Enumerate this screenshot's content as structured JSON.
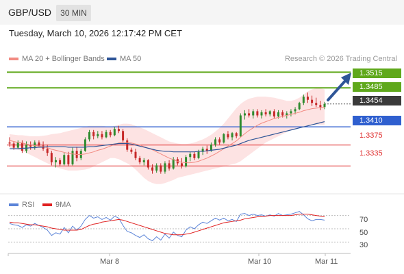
{
  "header": {
    "symbol": "GBP/USD",
    "timeframe": "30 MIN"
  },
  "datetime": "Tuesday, March 10, 2026 12:17:42 PM CET",
  "legend": {
    "ma20": {
      "label": "MA 20 + Bollinger Bands",
      "color": "#f28b82"
    },
    "ma50": {
      "label": "MA 50",
      "color": "#2e5597"
    }
  },
  "copyright": "Research © 2026 Trading Central",
  "levels": {
    "r2": "1.3515",
    "r1": "1.3485",
    "last": "1.3454",
    "s_pivot": "1.3410",
    "s1": "1.3375",
    "s2": "1.3335"
  },
  "colors": {
    "resistance": "#5fa81b",
    "pivot": "#2f5fcf",
    "support": "#e03030",
    "last": "#3a3a3a",
    "up_candle": "#2e8b2e",
    "down_candle": "#c62828",
    "band": "#fde3e3",
    "rsi": "#5b84d8",
    "rsi_ma": "#e02020"
  },
  "rsi_legend": {
    "rsi": "RSI",
    "ma": "9MA"
  },
  "rsi_axis": [
    "70",
    "50",
    "30"
  ],
  "dates": [
    "Mar 8",
    "Mar 10",
    "Mar 11"
  ],
  "chart_data": {
    "type": "candlestick",
    "candles": [
      [
        1.338,
        1.339,
        1.3372,
        1.3378
      ],
      [
        1.3378,
        1.3382,
        1.3366,
        1.337
      ],
      [
        1.337,
        1.3384,
        1.3368,
        1.338
      ],
      [
        1.338,
        1.3384,
        1.336,
        1.3364
      ],
      [
        1.3364,
        1.3382,
        1.336,
        1.3376
      ],
      [
        1.3376,
        1.3382,
        1.3366,
        1.3372
      ],
      [
        1.3372,
        1.3384,
        1.3366,
        1.338
      ],
      [
        1.338,
        1.3384,
        1.337,
        1.3374
      ],
      [
        1.3374,
        1.3382,
        1.3364,
        1.3368
      ],
      [
        1.3368,
        1.3376,
        1.3354,
        1.336
      ],
      [
        1.336,
        1.3364,
        1.3336,
        1.3342
      ],
      [
        1.3342,
        1.3352,
        1.3332,
        1.3346
      ],
      [
        1.3346,
        1.335,
        1.3334,
        1.3338
      ],
      [
        1.3338,
        1.336,
        1.3336,
        1.3356
      ],
      [
        1.3356,
        1.3362,
        1.3334,
        1.3338
      ],
      [
        1.3338,
        1.337,
        1.3336,
        1.3364
      ],
      [
        1.3364,
        1.3372,
        1.3344,
        1.335
      ],
      [
        1.335,
        1.3368,
        1.3346,
        1.3364
      ],
      [
        1.3364,
        1.339,
        1.3362,
        1.3386
      ],
      [
        1.3386,
        1.3404,
        1.3382,
        1.34
      ],
      [
        1.34,
        1.3404,
        1.3386,
        1.3392
      ],
      [
        1.3392,
        1.3402,
        1.3388,
        1.3396
      ],
      [
        1.3396,
        1.3402,
        1.3386,
        1.339
      ],
      [
        1.339,
        1.3404,
        1.3388,
        1.34
      ],
      [
        1.34,
        1.3404,
        1.339,
        1.3394
      ],
      [
        1.3394,
        1.341,
        1.3392,
        1.3406
      ],
      [
        1.3406,
        1.3412,
        1.3398,
        1.3402
      ],
      [
        1.3402,
        1.3406,
        1.338,
        1.3384
      ],
      [
        1.3384,
        1.3388,
        1.3362,
        1.3366
      ],
      [
        1.3366,
        1.337,
        1.3358,
        1.3362
      ],
      [
        1.3362,
        1.3368,
        1.3346,
        1.335
      ],
      [
        1.335,
        1.3354,
        1.3338,
        1.3342
      ],
      [
        1.3342,
        1.335,
        1.3336,
        1.3346
      ],
      [
        1.3346,
        1.3348,
        1.3328,
        1.3332
      ],
      [
        1.3332,
        1.3338,
        1.332,
        1.3326
      ],
      [
        1.3326,
        1.334,
        1.3322,
        1.3336
      ],
      [
        1.3336,
        1.334,
        1.332,
        1.3324
      ],
      [
        1.3324,
        1.3344,
        1.332,
        1.334
      ],
      [
        1.334,
        1.3346,
        1.3326,
        1.333
      ],
      [
        1.333,
        1.3352,
        1.3328,
        1.3348
      ],
      [
        1.3348,
        1.3352,
        1.3336,
        1.334
      ],
      [
        1.334,
        1.335,
        1.333,
        1.3334
      ],
      [
        1.3334,
        1.3356,
        1.3332,
        1.3352
      ],
      [
        1.3352,
        1.3362,
        1.3344,
        1.3358
      ],
      [
        1.3358,
        1.3362,
        1.3346,
        1.335
      ],
      [
        1.335,
        1.3366,
        1.3348,
        1.3362
      ],
      [
        1.3362,
        1.3372,
        1.3356,
        1.3368
      ],
      [
        1.3368,
        1.3374,
        1.3358,
        1.3364
      ],
      [
        1.3364,
        1.338,
        1.3362,
        1.3376
      ],
      [
        1.3376,
        1.339,
        1.3372,
        1.3386
      ],
      [
        1.3386,
        1.339,
        1.3376,
        1.338
      ],
      [
        1.338,
        1.3398,
        1.3378,
        1.3396
      ],
      [
        1.3396,
        1.3402,
        1.3386,
        1.339
      ],
      [
        1.339,
        1.34,
        1.3384,
        1.3398
      ],
      [
        1.3398,
        1.34,
        1.3388,
        1.3392
      ],
      [
        1.3392,
        1.3436,
        1.339,
        1.3432
      ],
      [
        1.3432,
        1.3442,
        1.3424,
        1.3436
      ],
      [
        1.3436,
        1.3444,
        1.3428,
        1.3432
      ],
      [
        1.3432,
        1.3444,
        1.3426,
        1.344
      ],
      [
        1.344,
        1.3444,
        1.3428,
        1.3432
      ],
      [
        1.3432,
        1.3442,
        1.3426,
        1.3438
      ],
      [
        1.3438,
        1.3444,
        1.343,
        1.3434
      ],
      [
        1.3434,
        1.3442,
        1.343,
        1.344
      ],
      [
        1.344,
        1.3444,
        1.3426,
        1.343
      ],
      [
        1.343,
        1.3442,
        1.3426,
        1.3438
      ],
      [
        1.3438,
        1.3442,
        1.3428,
        1.3432
      ],
      [
        1.3432,
        1.344,
        1.3426,
        1.3436
      ],
      [
        1.3436,
        1.3444,
        1.343,
        1.344
      ],
      [
        1.344,
        1.3448,
        1.3434,
        1.3444
      ],
      [
        1.3444,
        1.3458,
        1.3442,
        1.3456
      ],
      [
        1.3456,
        1.3472,
        1.3452,
        1.3468
      ],
      [
        1.3468,
        1.3476,
        1.3456,
        1.3462
      ],
      [
        1.3462,
        1.347,
        1.345,
        1.3456
      ],
      [
        1.3456,
        1.3466,
        1.3448,
        1.3452
      ],
      [
        1.3452,
        1.346,
        1.3442,
        1.3448
      ],
      [
        1.3448,
        1.3458,
        1.3444,
        1.3454
      ]
    ],
    "ma20": [
      1.3384,
      1.3382,
      1.338,
      1.3379,
      1.3377,
      1.3375,
      1.3374,
      1.3373,
      1.3372,
      1.337,
      1.3367,
      1.3365,
      1.3363,
      1.3361,
      1.3359,
      1.3358,
      1.3357,
      1.3357,
      1.3358,
      1.336,
      1.3362,
      1.3365,
      1.3367,
      1.337,
      1.3373,
      1.3376,
      1.3379,
      1.338,
      1.338,
      1.3379,
      1.3377,
      1.3375,
      1.3372,
      1.3369,
      1.3366,
      1.3362,
      1.3358,
      1.3354,
      1.335,
      1.3347,
      1.3344,
      1.3342,
      1.3341,
      1.3341,
      1.3342,
      1.3344,
      1.3347,
      1.335,
      1.3354,
      1.3358,
      1.3363,
      1.3368,
      1.3373,
      1.3378,
      1.3383,
      1.339,
      1.3397,
      1.3403,
      1.3408,
      1.3413,
      1.3417,
      1.342,
      1.3423,
      1.3426,
      1.3428,
      1.343,
      1.3432,
      1.3434,
      1.3436,
      1.3438,
      1.3441,
      1.3443,
      1.3445,
      1.3446,
      1.3447,
      1.3448
    ],
    "bb_upper": [
      1.3396,
      1.3395,
      1.3394,
      1.3394,
      1.3393,
      1.3392,
      1.3392,
      1.3392,
      1.3393,
      1.3394,
      1.3396,
      1.3397,
      1.3398,
      1.34,
      1.3402,
      1.3404,
      1.3406,
      1.3408,
      1.341,
      1.3412,
      1.3412,
      1.3412,
      1.3412,
      1.3411,
      1.341,
      1.3412,
      1.3414,
      1.3416,
      1.3416,
      1.3415,
      1.3412,
      1.3409,
      1.3406,
      1.3402,
      1.3398,
      1.3394,
      1.339,
      1.3386,
      1.3382,
      1.338,
      1.3378,
      1.3377,
      1.3377,
      1.3378,
      1.338,
      1.3383,
      1.3386,
      1.339,
      1.3395,
      1.3401,
      1.3408,
      1.3416,
      1.3426,
      1.3436,
      1.3446,
      1.3454,
      1.346,
      1.3464,
      1.3466,
      1.3468,
      1.3468,
      1.3468,
      1.3467,
      1.3466,
      1.3464,
      1.3462,
      1.346,
      1.346,
      1.3462,
      1.3466,
      1.3472,
      1.3478,
      1.3482,
      1.3484,
      1.3484,
      1.3482
    ],
    "bb_lower": [
      1.337,
      1.3368,
      1.3366,
      1.3364,
      1.336,
      1.3356,
      1.3352,
      1.3348,
      1.3344,
      1.334,
      1.3336,
      1.3333,
      1.333,
      1.3328,
      1.3326,
      1.3326,
      1.3326,
      1.3327,
      1.3328,
      1.333,
      1.3334,
      1.3338,
      1.3342,
      1.3346,
      1.335,
      1.335,
      1.3348,
      1.3344,
      1.334,
      1.3335,
      1.3328,
      1.332,
      1.3312,
      1.3306,
      1.3302,
      1.33,
      1.33,
      1.3302,
      1.3305,
      1.3308,
      1.3312,
      1.3314,
      1.3316,
      1.3318,
      1.332,
      1.3322,
      1.3324,
      1.3326,
      1.3328,
      1.333,
      1.3332,
      1.3334,
      1.3336,
      1.3338,
      1.334,
      1.3344,
      1.335,
      1.3356,
      1.3362,
      1.3368,
      1.3374,
      1.338,
      1.3384,
      1.3388,
      1.3392,
      1.3396,
      1.34,
      1.3404,
      1.3406,
      1.3408,
      1.341,
      1.3412,
      1.3414,
      1.3414,
      1.3414,
      1.3414
    ],
    "ma50": [
      1.3368,
      1.3368,
      1.3368,
      1.3369,
      1.3369,
      1.337,
      1.337,
      1.3371,
      1.3371,
      1.3372,
      1.3372,
      1.3372,
      1.3372,
      1.3372,
      1.3371,
      1.3371,
      1.3371,
      1.3371,
      1.3371,
      1.3372,
      1.3372,
      1.3373,
      1.3374,
      1.3375,
      1.3376,
      1.3377,
      1.3378,
      1.3378,
      1.3378,
      1.3377,
      1.3375,
      1.3373,
      1.3371,
      1.3369,
      1.3367,
      1.3365,
      1.3364,
      1.3363,
      1.3363,
      1.3362,
      1.3362,
      1.3362,
      1.3362,
      1.3362,
      1.3362,
      1.3363,
      1.3363,
      1.3364,
      1.3365,
      1.3366,
      1.3367,
      1.3369,
      1.3371,
      1.3373,
      1.3375,
      1.3378,
      1.3381,
      1.3384,
      1.3386,
      1.3388,
      1.339,
      1.3392,
      1.3394,
      1.3396,
      1.3398,
      1.34,
      1.3402,
      1.3404,
      1.3406,
      1.3408,
      1.341,
      1.3412,
      1.3414,
      1.3416,
      1.3418,
      1.342
    ],
    "rsi": [
      58,
      56,
      55,
      52,
      56,
      54,
      58,
      55,
      52,
      48,
      40,
      44,
      42,
      52,
      44,
      54,
      48,
      54,
      64,
      70,
      66,
      68,
      64,
      67,
      63,
      69,
      66,
      55,
      46,
      44,
      40,
      37,
      41,
      35,
      32,
      38,
      33,
      42,
      36,
      45,
      40,
      38,
      48,
      53,
      50,
      56,
      60,
      58,
      62,
      66,
      63,
      66,
      62,
      64,
      61,
      72,
      73,
      70,
      72,
      70,
      71,
      69,
      71,
      69,
      73,
      70,
      71,
      72,
      74,
      76,
      71,
      65,
      62,
      64,
      64,
      63
    ],
    "rsi_ma": [
      60,
      59,
      59,
      58,
      57,
      56,
      56,
      55,
      54,
      53,
      51,
      50,
      49,
      48,
      48,
      48,
      48,
      49,
      52,
      55,
      57,
      58,
      60,
      61,
      62,
      63,
      64,
      63,
      61,
      59,
      57,
      55,
      53,
      51,
      49,
      47,
      45,
      43,
      42,
      41,
      41,
      41,
      42,
      43,
      45,
      47,
      49,
      51,
      53,
      55,
      57,
      59,
      60,
      61,
      62,
      63,
      65,
      66,
      67,
      68,
      68,
      69,
      70,
      70,
      70,
      70,
      70,
      70,
      71,
      72,
      72,
      72,
      71,
      70,
      69,
      68
    ],
    "ylim": [
      1.328,
      1.353
    ],
    "rsi_ylim": [
      15,
      85
    ],
    "x_labels": [
      "Mar 8",
      "Mar 10",
      "Mar 11"
    ]
  }
}
